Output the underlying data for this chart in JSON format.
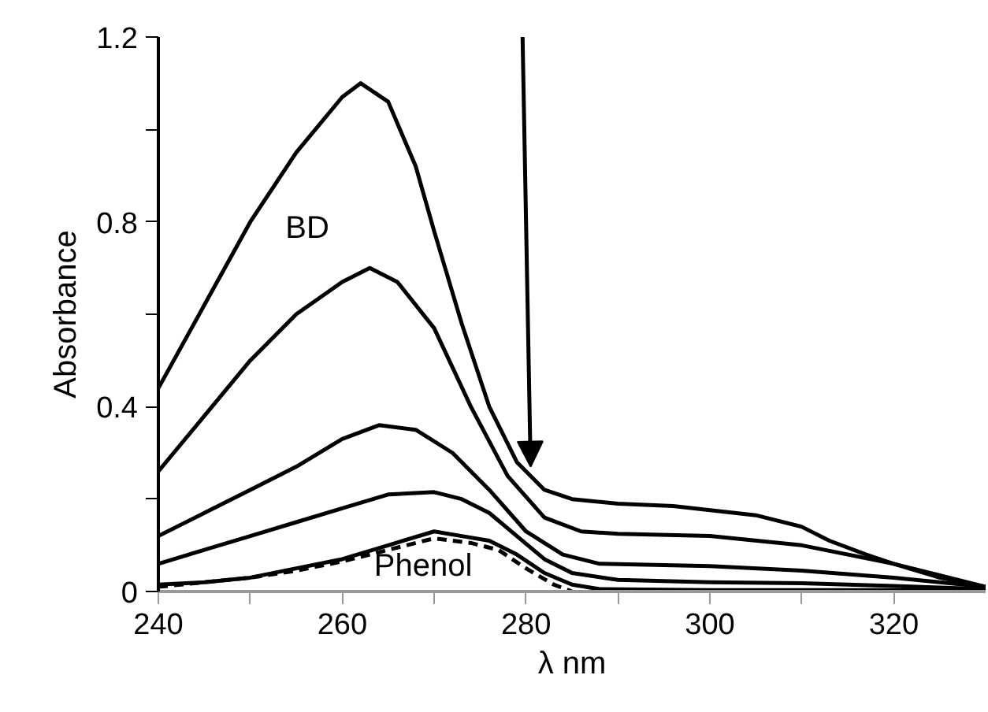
{
  "chart_data": {
    "type": "line",
    "xlabel": "λ nm",
    "ylabel": "Absorbance",
    "xlim": [
      240,
      330
    ],
    "ylim": [
      0,
      1.2
    ],
    "xticks": [
      240,
      {
        "value": 250,
        "label": null
      },
      260,
      {
        "value": 270,
        "label": null
      },
      280,
      {
        "value": 290,
        "label": null
      },
      300,
      {
        "value": 310,
        "label": null
      },
      320
    ],
    "yticks": [
      0,
      {
        "value": 0.2,
        "label": null
      },
      0.4,
      {
        "value": 0.6,
        "label": null
      },
      0.8,
      {
        "value": 1.0,
        "label": null
      },
      1.2
    ],
    "marker": "none",
    "annotations": [
      "BD",
      "Phenol"
    ],
    "series": [
      {
        "color": "#000000",
        "line_style": "solid",
        "x": [
          240,
          245,
          250,
          255,
          260,
          262,
          265,
          268,
          270,
          273,
          276,
          279,
          282,
          285,
          290,
          296,
          305,
          310,
          313,
          317,
          320,
          325,
          330
        ],
        "values": [
          0.44,
          0.62,
          0.8,
          0.95,
          1.07,
          1.1,
          1.06,
          0.92,
          0.78,
          0.58,
          0.4,
          0.28,
          0.22,
          0.2,
          0.19,
          0.185,
          0.165,
          0.14,
          0.11,
          0.08,
          0.06,
          0.03,
          0.01
        ]
      },
      {
        "color": "#000000",
        "line_style": "solid",
        "x": [
          240,
          245,
          250,
          255,
          260,
          263,
          266,
          270,
          274,
          278,
          282,
          286,
          290,
          300,
          310,
          320,
          325,
          330
        ],
        "values": [
          0.26,
          0.38,
          0.5,
          0.6,
          0.67,
          0.7,
          0.67,
          0.57,
          0.4,
          0.25,
          0.16,
          0.13,
          0.125,
          0.12,
          0.1,
          0.06,
          0.035,
          0.01
        ]
      },
      {
        "color": "#000000",
        "line_style": "solid",
        "x": [
          240,
          245,
          250,
          255,
          260,
          264,
          268,
          272,
          276,
          280,
          284,
          288,
          300,
          310,
          320,
          330
        ],
        "values": [
          0.12,
          0.17,
          0.22,
          0.27,
          0.33,
          0.36,
          0.35,
          0.3,
          0.22,
          0.13,
          0.08,
          0.06,
          0.055,
          0.045,
          0.03,
          0.01
        ]
      },
      {
        "color": "#000000",
        "line_style": "solid",
        "x": [
          240,
          245,
          250,
          255,
          260,
          265,
          270,
          273,
          276,
          279,
          282,
          285,
          290,
          300,
          310,
          320,
          330
        ],
        "values": [
          0.06,
          0.09,
          0.12,
          0.15,
          0.18,
          0.21,
          0.215,
          0.2,
          0.17,
          0.12,
          0.07,
          0.04,
          0.025,
          0.02,
          0.018,
          0.012,
          0.005
        ]
      },
      {
        "color": "#000000",
        "line_style": "solid",
        "x": [
          240,
          245,
          250,
          255,
          260,
          265,
          270,
          273,
          276,
          279,
          282,
          285,
          288,
          300,
          330
        ],
        "values": [
          0.015,
          0.02,
          0.03,
          0.05,
          0.07,
          0.1,
          0.13,
          0.12,
          0.11,
          0.08,
          0.04,
          0.015,
          0.005,
          0.003,
          0.003
        ]
      },
      {
        "color": "#000000",
        "line_style": "dashed",
        "x": [
          240,
          245,
          250,
          255,
          260,
          265,
          270,
          274,
          277,
          280,
          283,
          285
        ],
        "values": [
          0.01,
          0.02,
          0.03,
          0.045,
          0.065,
          0.09,
          0.115,
          0.105,
          0.09,
          0.05,
          0.015,
          0.0
        ]
      }
    ]
  }
}
